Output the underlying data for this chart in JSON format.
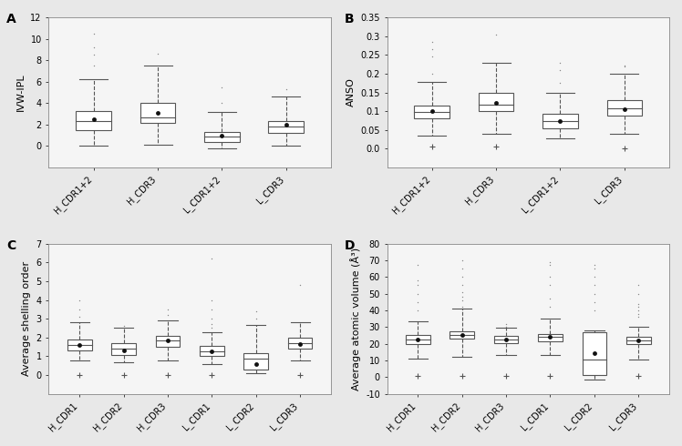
{
  "panel_A": {
    "label": "A",
    "ylabel": "IVW-IPL",
    "xlabels": [
      "H_CDR1+2",
      "H_CDR3",
      "L_CDR1+2",
      "L_CDR3"
    ],
    "ylim": [
      -2,
      12
    ],
    "yticks": [
      0,
      2,
      4,
      6,
      8,
      10,
      12
    ],
    "boxes": [
      {
        "med": 2.3,
        "q1": 1.5,
        "q3": 3.3,
        "whislo": 0.0,
        "whishi": 6.2,
        "mean": 2.5,
        "fliers_high": [
          7.5,
          8.5,
          9.2,
          10.5
        ],
        "fliers_low": []
      },
      {
        "med": 2.7,
        "q1": 2.2,
        "q3": 4.0,
        "whislo": 0.1,
        "whishi": 7.5,
        "mean": 3.1,
        "fliers_high": [
          8.6
        ],
        "fliers_low": []
      },
      {
        "med": 0.85,
        "q1": 0.35,
        "q3": 1.35,
        "whislo": -0.2,
        "whishi": 3.2,
        "mean": 1.0,
        "fliers_high": [
          4.0,
          5.5
        ],
        "fliers_low": []
      },
      {
        "med": 1.85,
        "q1": 1.2,
        "q3": 2.3,
        "whislo": 0.05,
        "whishi": 4.6,
        "mean": 2.0,
        "fliers_high": [
          5.3
        ],
        "fliers_low": []
      }
    ]
  },
  "panel_B": {
    "label": "B",
    "ylabel": "ANSO",
    "xlabels": [
      "H_CDR1+2",
      "H_CDR3",
      "L_CDR1+2",
      "L_CDR3"
    ],
    "ylim": [
      -0.05,
      0.35
    ],
    "yticks": [
      0.0,
      0.05,
      0.1,
      0.15,
      0.2,
      0.25,
      0.3,
      0.35
    ],
    "boxes": [
      {
        "med": 0.098,
        "q1": 0.082,
        "q3": 0.115,
        "whislo": 0.035,
        "whishi": 0.178,
        "mean": 0.1,
        "fliers_high": [
          0.2,
          0.245,
          0.265,
          0.285
        ],
        "fliers_low": [
          0.007
        ]
      },
      {
        "med": 0.118,
        "q1": 0.1,
        "q3": 0.148,
        "whislo": 0.04,
        "whishi": 0.23,
        "mean": 0.123,
        "fliers_high": [
          0.305
        ],
        "fliers_low": [
          0.005
        ]
      },
      {
        "med": 0.073,
        "q1": 0.055,
        "q3": 0.093,
        "whislo": 0.028,
        "whishi": 0.15,
        "mean": 0.073,
        "fliers_high": [
          0.175,
          0.21,
          0.23
        ],
        "fliers_low": []
      },
      {
        "med": 0.107,
        "q1": 0.088,
        "q3": 0.13,
        "whislo": 0.04,
        "whishi": 0.2,
        "mean": 0.105,
        "fliers_high": [
          0.218,
          0.222
        ],
        "fliers_low": [
          0.002
        ]
      }
    ]
  },
  "panel_C": {
    "label": "C",
    "ylabel": "Average shelling order",
    "xlabels": [
      "H_CDR1",
      "H_CDR2",
      "H_CDR3",
      "L_CDR1",
      "L_CDR2",
      "L_CDR3"
    ],
    "ylim": [
      -1,
      7
    ],
    "yticks": [
      0,
      1,
      2,
      3,
      4,
      5,
      6,
      7
    ],
    "boxes": [
      {
        "med": 1.6,
        "q1": 1.3,
        "q3": 1.9,
        "whislo": 0.8,
        "whishi": 2.8,
        "mean": 1.6,
        "fliers_high": [
          3.1,
          3.5,
          4.0
        ],
        "fliers_low": [
          0.02
        ]
      },
      {
        "med": 1.4,
        "q1": 1.05,
        "q3": 1.7,
        "whislo": 0.7,
        "whishi": 2.5,
        "mean": 1.3,
        "fliers_high": [
          2.6
        ],
        "fliers_low": [
          0.02
        ]
      },
      {
        "med": 1.85,
        "q1": 1.5,
        "q3": 2.1,
        "whislo": 0.8,
        "whishi": 2.9,
        "mean": 1.85,
        "fliers_high": [
          3.2,
          3.5
        ],
        "fliers_low": [
          0.02
        ]
      },
      {
        "med": 1.25,
        "q1": 1.0,
        "q3": 1.55,
        "whislo": 0.6,
        "whishi": 2.3,
        "mean": 1.25,
        "fliers_high": [
          2.5,
          2.7,
          3.0,
          3.5,
          4.0,
          6.2
        ],
        "fliers_low": [
          0.02
        ]
      },
      {
        "med": 0.85,
        "q1": 0.3,
        "q3": 1.15,
        "whislo": 0.1,
        "whishi": 2.65,
        "mean": 0.6,
        "fliers_high": [
          3.0,
          3.4
        ],
        "fliers_low": []
      },
      {
        "med": 1.7,
        "q1": 1.4,
        "q3": 2.0,
        "whislo": 0.8,
        "whishi": 2.8,
        "mean": 1.65,
        "fliers_high": [
          4.8
        ],
        "fliers_low": [
          0.02
        ]
      }
    ]
  },
  "panel_D": {
    "label": "D",
    "ylabel": "Average atomic volume (Å³)",
    "xlabels": [
      "H_CDR1",
      "H_CDR2",
      "H_CDR3",
      "L_CDR1",
      "L_CDR2",
      "L_CDR3"
    ],
    "ylim": [
      -10,
      80
    ],
    "yticks": [
      -10,
      0,
      10,
      20,
      30,
      40,
      50,
      60,
      70,
      80
    ],
    "boxes": [
      {
        "med": 22.5,
        "q1": 20.0,
        "q3": 25.5,
        "whislo": 11.0,
        "whishi": 33.5,
        "mean": 22.5,
        "fliers_high": [
          40,
          45,
          50,
          55,
          58,
          67
        ],
        "fliers_low": [
          0.5
        ]
      },
      {
        "med": 25.0,
        "q1": 23.0,
        "q3": 27.5,
        "whislo": 12.0,
        "whishi": 41.0,
        "mean": 25.0,
        "fliers_high": [
          42,
          46,
          48,
          51,
          55,
          60,
          65,
          70
        ],
        "fliers_low": [
          0.5
        ]
      },
      {
        "med": 22.5,
        "q1": 20.5,
        "q3": 24.5,
        "whislo": 13.0,
        "whishi": 29.5,
        "mean": 22.5,
        "fliers_high": [
          30,
          32
        ],
        "fliers_low": [
          0.5
        ]
      },
      {
        "med": 24.0,
        "q1": 21.5,
        "q3": 26.0,
        "whislo": 13.5,
        "whishi": 35.0,
        "mean": 24.0,
        "fliers_high": [
          42,
          47,
          55,
          60,
          67,
          69
        ],
        "fliers_low": [
          0.5
        ]
      },
      {
        "med": 10.5,
        "q1": 1.5,
        "q3": 27.0,
        "whislo": -1.5,
        "whishi": 28.0,
        "mean": 14.5,
        "fliers_high": [
          40,
          45,
          50,
          55,
          60,
          65,
          67
        ],
        "fliers_low": []
      },
      {
        "med": 22.0,
        "q1": 20.0,
        "q3": 24.0,
        "whislo": 10.5,
        "whishi": 30.0,
        "mean": 22.0,
        "fliers_high": [
          36,
          38,
          40,
          42,
          44,
          50,
          55
        ],
        "fliers_low": [
          0.5
        ]
      }
    ]
  },
  "line_color": "#555555",
  "mean_marker_color": "#111111",
  "flier_dot_color": "#888888",
  "flier_plus_color": "#555555",
  "whisker_style": "--",
  "figure_facecolor": "#e8e8e8",
  "axes_facecolor": "#f5f5f5",
  "panel_label_fontsize": 10,
  "tick_fontsize": 7,
  "ylabel_fontsize": 8,
  "box_width": 0.55
}
